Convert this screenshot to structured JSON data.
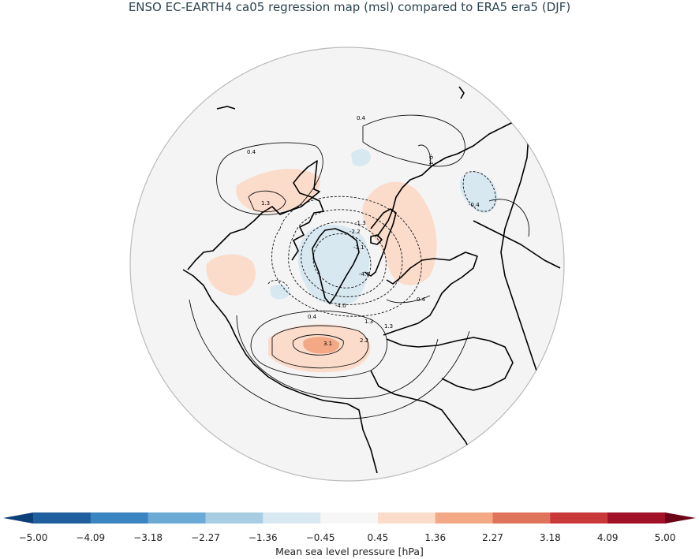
{
  "title": "ENSO EC-EARTH4 ca05 regression map (msl) compared to ERA5 era5 (DJF)",
  "colorbar": {
    "label": "Mean sea level pressure [hPa]",
    "ticks": [
      "−5.00",
      "−4.09",
      "−3.18",
      "−2.27",
      "−1.36",
      "−0.45",
      "0.45",
      "1.36",
      "2.27",
      "3.18",
      "4.09",
      "5.00"
    ],
    "colors": [
      "#1f5fa0",
      "#3b85c2",
      "#6aaad4",
      "#a7cde3",
      "#d8e8f1",
      "#f7f7f7",
      "#fbdccb",
      "#f3a886",
      "#e0735b",
      "#c9393a",
      "#a11228"
    ]
  },
  "contour_labels": [
    {
      "text": "0.4"
    },
    {
      "text": "0.4"
    },
    {
      "text": "0.4"
    },
    {
      "text": "0.4"
    },
    {
      "text": "-0.4"
    },
    {
      "text": "1.3"
    },
    {
      "text": "1.3"
    },
    {
      "text": "-1.3"
    },
    {
      "text": "-2.2"
    },
    {
      "text": "-3.1"
    },
    {
      "text": "-4.0"
    },
    {
      "text": "-4.0"
    },
    {
      "text": "-0.4"
    },
    {
      "text": "2.2"
    },
    {
      "text": "3.1"
    },
    {
      "text": "1.3"
    }
  ],
  "map": {
    "projection": "north-polar-stereographic",
    "fill": "#f4f4f4",
    "anomaly_positive": "#fbdccb",
    "anomaly_positive_strong": "#f3a886",
    "anomaly_negative": "#d8e8f1"
  }
}
